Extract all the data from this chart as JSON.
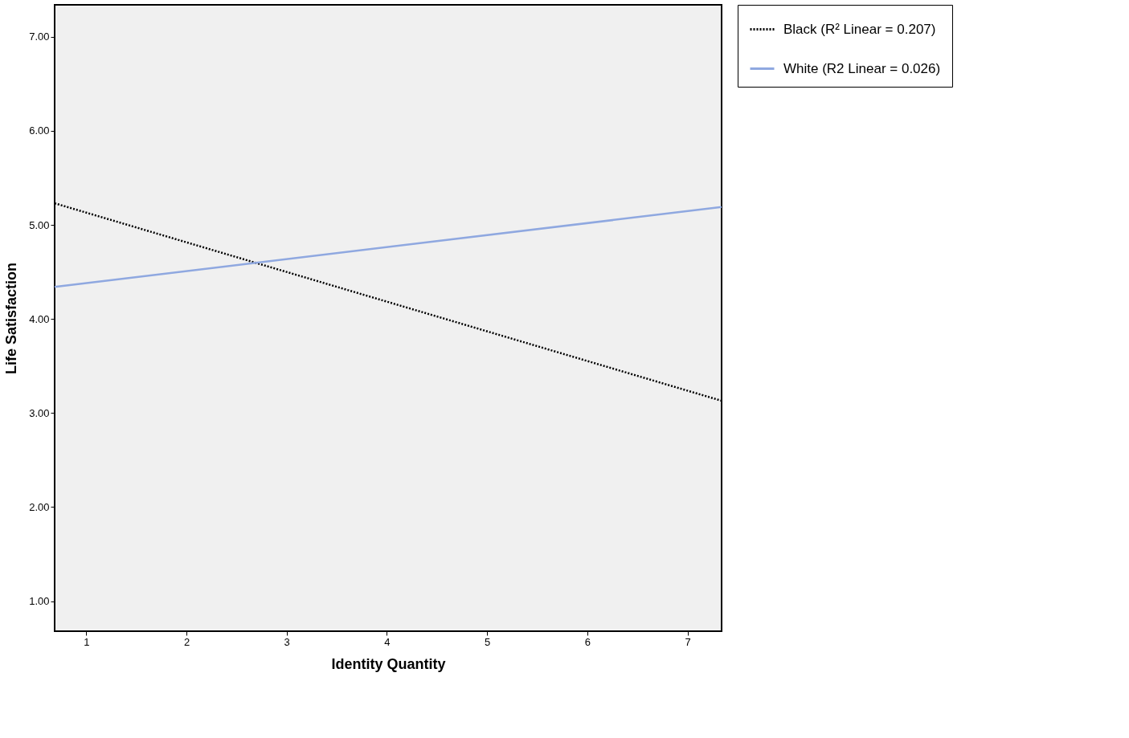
{
  "chart_data": {
    "type": "line",
    "xlabel": "Identity Quantity",
    "ylabel": "Life Satisfaction",
    "xlim": [
      0.685,
      7.34
    ],
    "ylim": [
      0.68,
      7.34
    ],
    "xticks": [
      1,
      2,
      3,
      4,
      5,
      6,
      7
    ],
    "x": [
      0.685,
      7.34
    ],
    "yticks": [
      {
        "value": 1,
        "label": "1.00"
      },
      {
        "value": 2,
        "label": "2.00"
      },
      {
        "value": 3,
        "label": "3.00"
      },
      {
        "value": 4,
        "label": "4.00"
      },
      {
        "value": 5,
        "label": "5.00"
      },
      {
        "value": 6,
        "label": "6.00"
      },
      {
        "value": 7,
        "label": "7.00"
      }
    ],
    "series": [
      {
        "name": "Black (R² Linear = 0.207)",
        "color": "#000000",
        "line_style": "dotted",
        "values": [
          5.23,
          3.13
        ]
      },
      {
        "name": "White (R2 Linear = 0.026)",
        "color": "#8fa8e0",
        "line_style": "solid",
        "values": [
          4.34,
          5.19
        ]
      }
    ],
    "grid": false,
    "legend": "right",
    "marker": "none"
  }
}
